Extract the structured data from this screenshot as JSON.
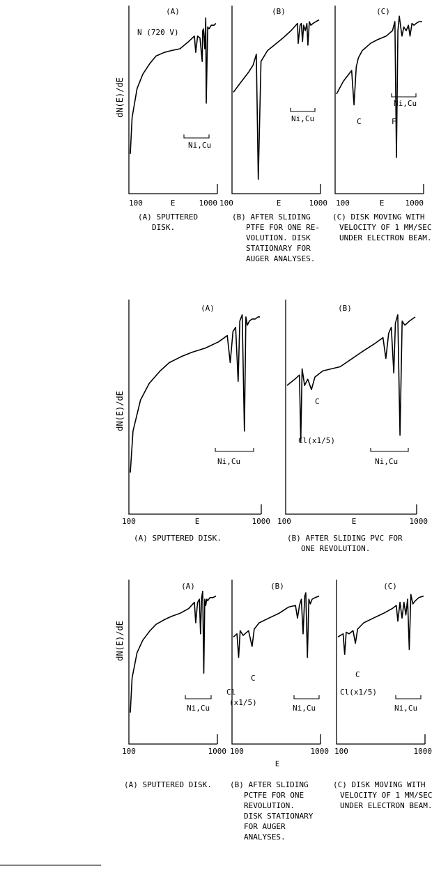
{
  "figures": [
    {
      "ylabel": "dN(E)/dE",
      "panels": [
        {
          "label": "(A)",
          "x_ticks": [
            "100",
            "E",
            "1000"
          ],
          "annotations": [
            "N (720 V)",
            "Ni,Cu"
          ],
          "caption": [
            "(A) SPUTTERED",
            "DISK."
          ]
        },
        {
          "label": "(B)",
          "x_ticks": [
            "100",
            "E",
            "1000"
          ],
          "annotations": [
            "Ni,Cu"
          ],
          "caption": [
            "(B) AFTER SLIDING",
            "PTFE FOR ONE RE-",
            "VOLUTION.  DISK",
            "STATIONARY FOR",
            "AUGER ANALYSES."
          ]
        },
        {
          "label": "(C)",
          "x_ticks": [
            "100",
            "E",
            "1000"
          ],
          "annotations": [
            "Ni,Cu",
            "C",
            "F"
          ],
          "caption": [
            "(C) DISK MOVING WITH",
            "VELOCITY OF 1 MM/SEC",
            "UNDER ELECTRON BEAM."
          ]
        }
      ]
    },
    {
      "ylabel": "dN(E)/dE",
      "panels": [
        {
          "label": "(A)",
          "x_ticks": [
            "100",
            "E",
            "1000"
          ],
          "annotations": [
            "Ni,Cu"
          ],
          "caption": [
            "(A) SPUTTERED DISK."
          ]
        },
        {
          "label": "(B)",
          "x_ticks": [
            "100",
            "E",
            "1000"
          ],
          "annotations": [
            "Ni,Cu",
            "C",
            "Cl(x1/5)"
          ],
          "caption": [
            "(B) AFTER SLIDING PVC FOR",
            "ONE REVOLUTION."
          ]
        }
      ]
    },
    {
      "ylabel": "dN(E)/dE",
      "xlabel": "E",
      "panels": [
        {
          "label": "(A)",
          "x_ticks": [
            "100",
            "1000"
          ],
          "annotations": [
            "Ni,Cu"
          ],
          "caption": [
            "(A) SPUTTERED DISK."
          ]
        },
        {
          "label": "(B)",
          "x_ticks": [
            "100",
            "1000"
          ],
          "annotations": [
            "Ni,Cu",
            "C",
            "Cl",
            "(x1/5)"
          ],
          "caption": [
            "(B) AFTER SLIDING",
            "PCTFE FOR ONE",
            "REVOLUTION.",
            "DISK STATIONARY",
            "FOR AUGER",
            "ANALYSES."
          ]
        },
        {
          "label": "(C)",
          "x_ticks": [
            "100",
            "1000"
          ],
          "annotations": [
            "Ni,Cu",
            "C",
            "Cl(x1/5)"
          ],
          "caption": [
            "(C) DISK MOVING WITH",
            "VELOCITY OF 1 MM/SEC",
            "UNDER ELECTRON BEAM."
          ]
        }
      ]
    }
  ],
  "chart_data": [
    {
      "type": "line",
      "xscale": "log",
      "xlim": [
        100,
        1000
      ],
      "ylabel": "dN(E)/dE",
      "series": [
        {
          "name": "(A)",
          "x": [
            100,
            105,
            120,
            140,
            170,
            200,
            250,
            300,
            380,
            480,
            560,
            580,
            610,
            650,
            690,
            700,
            715,
            740,
            760,
            770,
            800,
            830,
            880,
            950,
            1000
          ],
          "y": [
            0.22,
            0.42,
            0.58,
            0.66,
            0.72,
            0.76,
            0.78,
            0.79,
            0.8,
            0.84,
            0.87,
            0.78,
            0.87,
            0.86,
            0.73,
            0.9,
            0.91,
            0.8,
            0.97,
            0.5,
            0.92,
            0.91,
            0.93,
            0.93,
            0.94
          ]
        },
        {
          "name": "(B)",
          "x": [
            100,
            120,
            150,
            170,
            185,
            195,
            210,
            250,
            300,
            380,
            470,
            560,
            570,
            600,
            620,
            640,
            660,
            690,
            720,
            740,
            770,
            800,
            850,
            920,
            1000
          ],
          "y": [
            0.56,
            0.61,
            0.67,
            0.71,
            0.77,
            0.08,
            0.73,
            0.79,
            0.82,
            0.86,
            0.9,
            0.94,
            0.83,
            0.93,
            0.94,
            0.84,
            0.93,
            0.9,
            0.94,
            0.82,
            0.95,
            0.93,
            0.94,
            0.95,
            0.96
          ]
        },
        {
          "name": "(C)",
          "x": [
            100,
            120,
            150,
            160,
            170,
            180,
            200,
            250,
            300,
            380,
            450,
            480,
            500,
            520,
            540,
            580,
            610,
            650,
            690,
            720,
            760,
            800,
            850,
            920,
            1000
          ],
          "y": [
            0.55,
            0.62,
            0.68,
            0.49,
            0.7,
            0.75,
            0.79,
            0.83,
            0.85,
            0.87,
            0.9,
            0.95,
            0.2,
            0.9,
            0.98,
            0.87,
            0.92,
            0.9,
            0.93,
            0.87,
            0.94,
            0.93,
            0.94,
            0.95,
            0.95
          ]
        }
      ]
    },
    {
      "type": "line",
      "xscale": "log",
      "xlim": [
        100,
        1000
      ],
      "ylabel": "dN(E)/dE",
      "series": [
        {
          "name": "(A)",
          "x": [
            100,
            105,
            120,
            140,
            170,
            200,
            250,
            300,
            380,
            480,
            560,
            590,
            620,
            650,
            680,
            700,
            730,
            760,
            780,
            800,
            830,
            870,
            920,
            970,
            1000
          ],
          "y": [
            0.2,
            0.4,
            0.55,
            0.63,
            0.69,
            0.73,
            0.76,
            0.78,
            0.8,
            0.83,
            0.86,
            0.73,
            0.88,
            0.9,
            0.64,
            0.93,
            0.96,
            0.4,
            0.95,
            0.91,
            0.93,
            0.94,
            0.94,
            0.95,
            0.95
          ]
        },
        {
          "name": "(B)",
          "x": [
            100,
            115,
            125,
            128,
            131,
            137,
            145,
            155,
            165,
            190,
            260,
            380,
            480,
            560,
            590,
            620,
            650,
            680,
            700,
            730,
            760,
            790,
            830,
            900,
            1000
          ],
          "y": [
            0.62,
            0.65,
            0.67,
            0.35,
            0.7,
            0.62,
            0.65,
            0.6,
            0.66,
            0.69,
            0.71,
            0.78,
            0.82,
            0.85,
            0.75,
            0.87,
            0.9,
            0.68,
            0.92,
            0.96,
            0.38,
            0.93,
            0.91,
            0.93,
            0.95
          ]
        }
      ]
    },
    {
      "type": "line",
      "xscale": "log",
      "xlim": [
        100,
        1000
      ],
      "ylabel": "dN(E)/dE",
      "xlabel": "E",
      "series": [
        {
          "name": "(A)",
          "x": [
            100,
            105,
            120,
            140,
            170,
            200,
            250,
            300,
            380,
            480,
            560,
            580,
            610,
            640,
            660,
            680,
            700,
            720,
            740,
            760,
            780,
            800,
            850,
            920,
            1000
          ],
          "y": [
            0.2,
            0.42,
            0.58,
            0.66,
            0.72,
            0.76,
            0.79,
            0.81,
            0.83,
            0.86,
            0.9,
            0.77,
            0.9,
            0.92,
            0.7,
            0.93,
            0.97,
            0.45,
            0.92,
            0.88,
            0.92,
            0.91,
            0.93,
            0.93,
            0.94
          ]
        },
        {
          "name": "(B)",
          "x": [
            100,
            110,
            115,
            120,
            130,
            150,
            165,
            175,
            200,
            260,
            340,
            440,
            530,
            560,
            590,
            620,
            650,
            680,
            700,
            730,
            760,
            790,
            830,
            900,
            1000
          ],
          "y": [
            0.68,
            0.7,
            0.55,
            0.72,
            0.69,
            0.72,
            0.62,
            0.73,
            0.77,
            0.8,
            0.83,
            0.87,
            0.88,
            0.8,
            0.88,
            0.92,
            0.7,
            0.94,
            0.96,
            0.55,
            0.92,
            0.89,
            0.92,
            0.93,
            0.94
          ]
        },
        {
          "name": "(C)",
          "x": [
            100,
            115,
            120,
            125,
            135,
            150,
            160,
            170,
            200,
            260,
            340,
            430,
            480,
            500,
            530,
            560,
            590,
            620,
            650,
            680,
            710,
            750,
            800,
            880,
            1000
          ],
          "y": [
            0.68,
            0.7,
            0.57,
            0.71,
            0.7,
            0.72,
            0.64,
            0.73,
            0.77,
            0.8,
            0.83,
            0.86,
            0.88,
            0.78,
            0.9,
            0.8,
            0.9,
            0.82,
            0.92,
            0.6,
            0.95,
            0.89,
            0.91,
            0.93,
            0.94
          ]
        }
      ]
    }
  ]
}
